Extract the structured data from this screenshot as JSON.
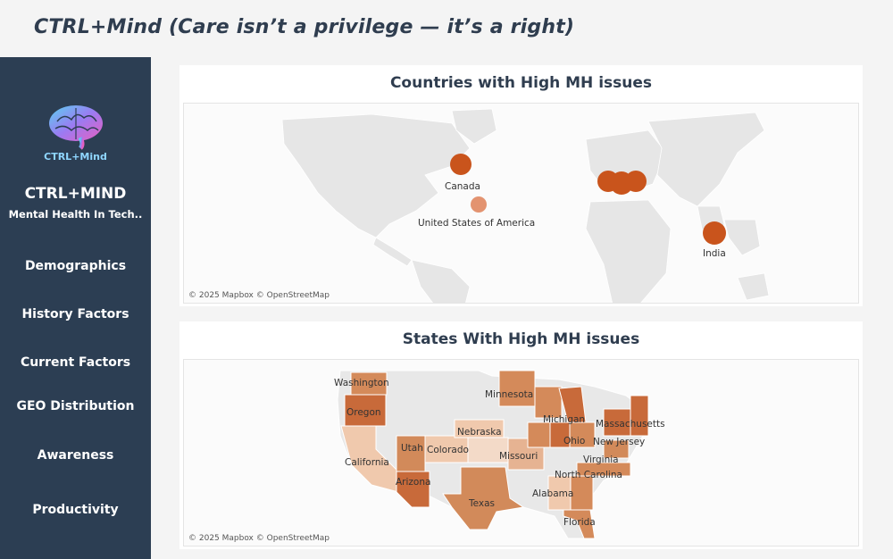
{
  "app": {
    "title": "CTRL+Mind (Care isn’t a privilege — it’s a right)"
  },
  "sidebar": {
    "logo_text": "CTRL+Mind",
    "brand": "CTRL+MIND",
    "brand_sub": "Mental Health In Tech..",
    "items": [
      {
        "label": "Demographics"
      },
      {
        "label": "History Factors"
      },
      {
        "label": "Current Factors"
      },
      {
        "label": "GEO Distribution"
      },
      {
        "label": "Awareness"
      },
      {
        "label": "Productivity"
      }
    ]
  },
  "countries_panel": {
    "title": "Countries with High MH issues",
    "attribution": "© 2025 Mapbox © OpenStreetMap",
    "labels": [
      "Canada",
      "United States of America",
      "India"
    ],
    "marker_color": "#c9541c"
  },
  "states_panel": {
    "title": "States With High MH issues",
    "attribution": "© 2025 Mapbox © OpenStreetMap",
    "labels": [
      "Washington",
      "Oregon",
      "California",
      "Arizona",
      "Utah",
      "Colorado",
      "Nebraska",
      "Minnesota",
      "Michigan",
      "Ohio",
      "Missouri",
      "Texas",
      "Alabama",
      "Florida",
      "North Carolina",
      "Virginia",
      "New Jersey",
      "Massachusetts"
    ],
    "fill_color_high": "#c86a3a",
    "fill_color_low": "#f0c9ad"
  }
}
